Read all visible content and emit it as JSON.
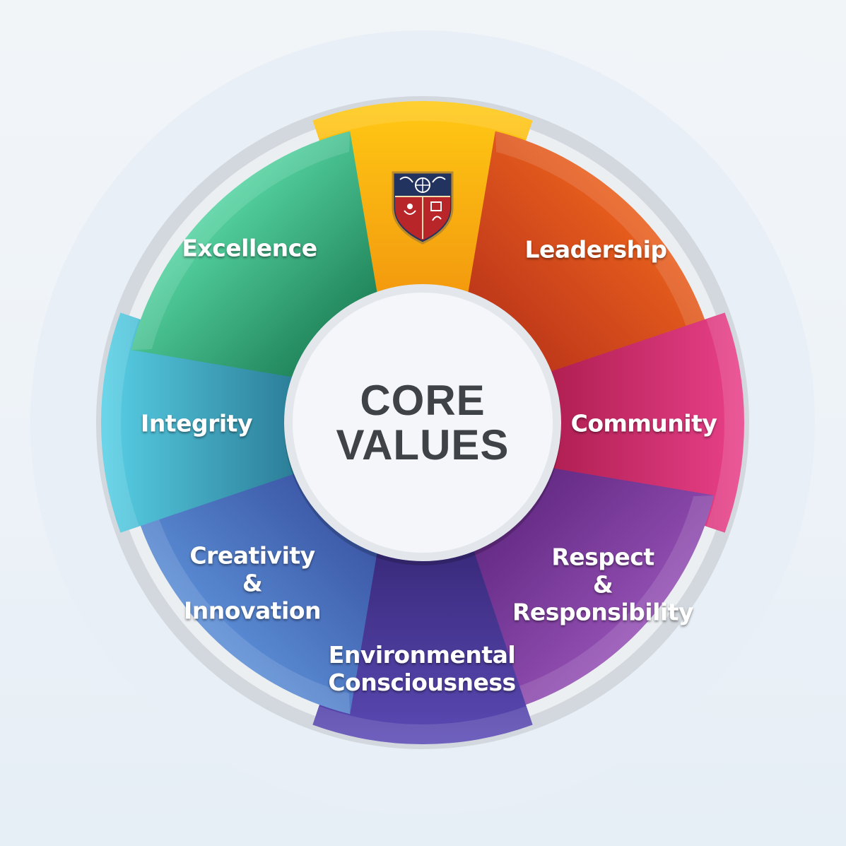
{
  "center": {
    "line1": "CORE",
    "line2": "VALUES"
  },
  "segments": [
    {
      "id": "logo",
      "lines": [],
      "color_light": "#ffc914",
      "color_dark": "#f39a0e",
      "emblem": "school-crest-icon"
    },
    {
      "id": "leadership",
      "lines": [
        "Leadership"
      ],
      "color_light": "#e9601d",
      "color_dark": "#c0391a"
    },
    {
      "id": "community",
      "lines": [
        "Community"
      ],
      "color_light": "#e9418a",
      "color_dark": "#b01f52"
    },
    {
      "id": "respect",
      "lines": [
        "Respect",
        "&",
        "Responsibility"
      ],
      "color_light": "#9450b4",
      "color_dark": "#662c86"
    },
    {
      "id": "environmental",
      "lines": [
        "Environmental",
        "Consciousness"
      ],
      "color_light": "#5a4ab4",
      "color_dark": "#3a2a7c"
    },
    {
      "id": "creativity",
      "lines": [
        "Creativity",
        "&",
        "Innovation"
      ],
      "color_light": "#5b8ed6",
      "color_dark": "#3d5aa8"
    },
    {
      "id": "integrity",
      "lines": [
        "Integrity"
      ],
      "color_light": "#58d0e6",
      "color_dark": "#2c7e98"
    },
    {
      "id": "excellence",
      "lines": [
        "Excellence"
      ],
      "color_light": "#56d4a2",
      "color_dark": "#23885e"
    }
  ],
  "ring_colors": {
    "outer_halo": "#e8eff6",
    "track": "#d3d8de",
    "hub_fill": "#f4f6f9",
    "hub_border": "#e3e7ec"
  }
}
